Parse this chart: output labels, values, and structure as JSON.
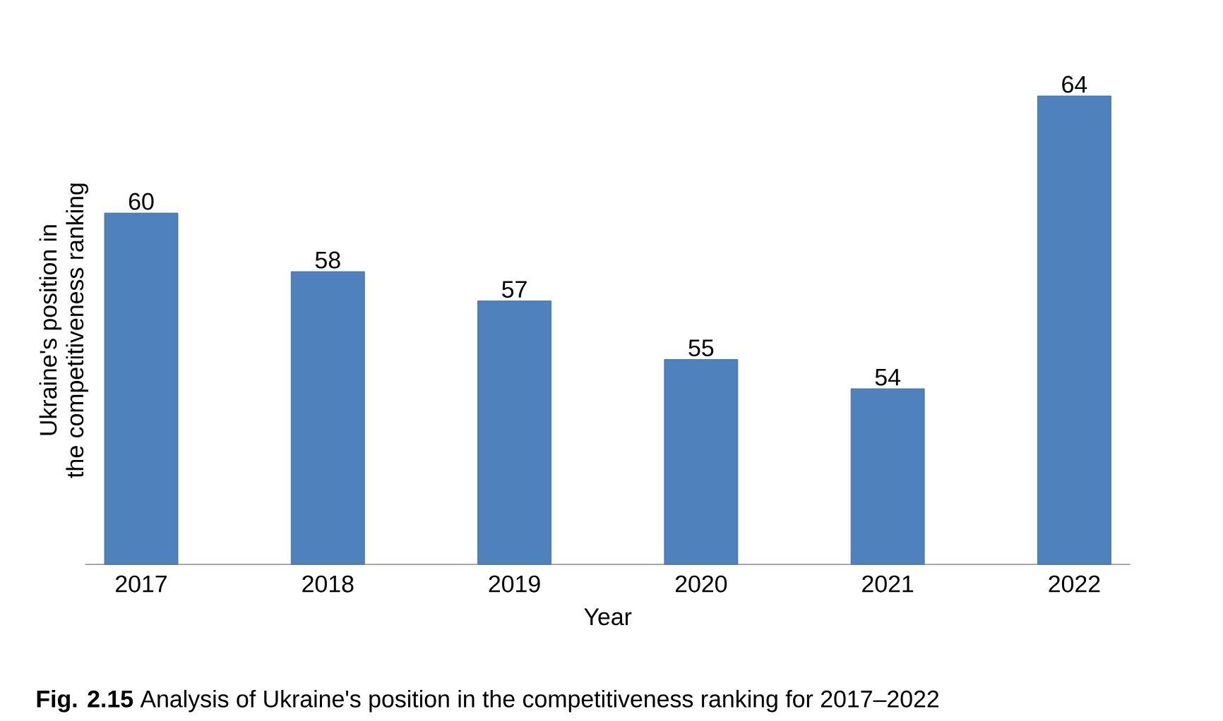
{
  "chart_data": {
    "type": "bar",
    "xlabel": "Year",
    "ylabel": "Ukraine's position in\nthe competitiveness ranking",
    "categories": [
      "2017",
      "2018",
      "2019",
      "2020",
      "2021",
      "2022"
    ],
    "values": [
      60,
      58,
      57,
      55,
      54,
      64
    ],
    "color": "#4f81bd",
    "ylim": [
      48,
      64
    ],
    "data_labels": true,
    "annotations": [
      "**Fig. 2.15** Analysis of Ukraine's position in the competitiveness ranking for 2017–2022"
    ]
  }
}
